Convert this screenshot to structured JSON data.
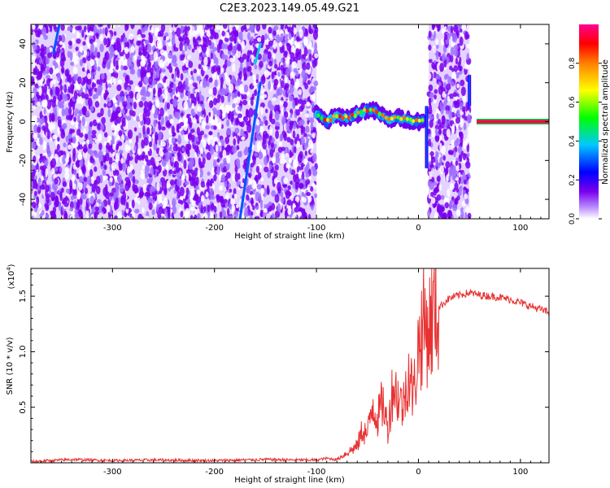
{
  "title": "C2E3.2023.149.05.49.G21",
  "chart_data": [
    {
      "type": "heatmap",
      "xlabel": "Height of straight line (km)",
      "ylabel": "Frequency (Hz)",
      "xlim": [
        -380,
        128
      ],
      "ylim": [
        -50,
        50
      ],
      "xticks": [
        -300,
        -200,
        -100,
        0,
        100
      ],
      "yticks": [
        -40,
        -20,
        0,
        20,
        40
      ],
      "colorbar": {
        "label": "Normalized spectral amplitude",
        "range": [
          0.0,
          1.0
        ],
        "ticks": [
          0.0,
          0.2,
          0.4,
          0.6,
          0.8
        ],
        "colors": [
          "#ffffff",
          "#b98cff",
          "#7a00ee",
          "#0000ff",
          "#00c8ff",
          "#00ff00",
          "#ffff00",
          "#ff8000",
          "#ff0000",
          "#ff0090"
        ]
      },
      "noise_regions": [
        {
          "x": [
            -380,
            -100
          ]
        },
        {
          "x": [
            10,
            50
          ]
        }
      ],
      "line_features": [
        {
          "x": [
            -175,
            -155
          ],
          "y": [
            -50,
            20
          ],
          "level": 0.3
        },
        {
          "x": [
            -160,
            -155
          ],
          "y": [
            30,
            40
          ],
          "level": 0.4
        },
        {
          "x": [
            -358,
            -352
          ],
          "y": [
            35,
            50
          ],
          "level": 0.3
        }
      ],
      "signal_track": {
        "x": [
          -100,
          -90,
          -80,
          -70,
          -60,
          -50,
          -40,
          -30,
          -20,
          -10,
          0,
          5
        ],
        "y": [
          4,
          0,
          3,
          2,
          4,
          6,
          5,
          1,
          2,
          1,
          0,
          1
        ]
      },
      "edge_features": [
        {
          "x": 8,
          "y": [
            -24,
            8
          ]
        },
        {
          "x": 50,
          "y": [
            8,
            24
          ]
        }
      ],
      "carrier": {
        "x": [
          57,
          128
        ],
        "y": 0,
        "level": 0.95
      }
    },
    {
      "type": "line",
      "xlabel": "Height of straight line (km)",
      "ylabel": "SNR (10 * v/v)",
      "y_multiplier_label": "(x10",
      "y_multiplier_exp": "4",
      "y_multiplier_close": ")",
      "xlim": [
        -380,
        128
      ],
      "ylim": [
        0,
        17500
      ],
      "xticks": [
        -300,
        -200,
        -100,
        0,
        100
      ],
      "yticks": [
        5000,
        10000,
        15000
      ],
      "ytick_labels": [
        "0.5",
        "1.0",
        "1.5"
      ],
      "color": "#e83232",
      "series": [
        {
          "x": [
            -380,
            -340,
            -300,
            -260,
            -200,
            -150,
            -120,
            -100,
            -90,
            -80,
            -70,
            -60,
            -55,
            -50,
            -45,
            -40,
            -35,
            -30,
            -25,
            -20,
            -15,
            -10,
            -5,
            0,
            5,
            10,
            15,
            20,
            30,
            40,
            50,
            60,
            70,
            80,
            90,
            100,
            110,
            120,
            128
          ],
          "y": [
            100,
            300,
            200,
            250,
            200,
            300,
            250,
            250,
            400,
            300,
            900,
            1500,
            3000,
            2500,
            5500,
            4000,
            5500,
            3000,
            7000,
            6000,
            5000,
            8500,
            6000,
            10500,
            12500,
            12000,
            13500,
            14000,
            14800,
            15100,
            15300,
            15100,
            15000,
            14900,
            14700,
            14400,
            14100,
            13800,
            13500
          ]
        }
      ]
    }
  ]
}
